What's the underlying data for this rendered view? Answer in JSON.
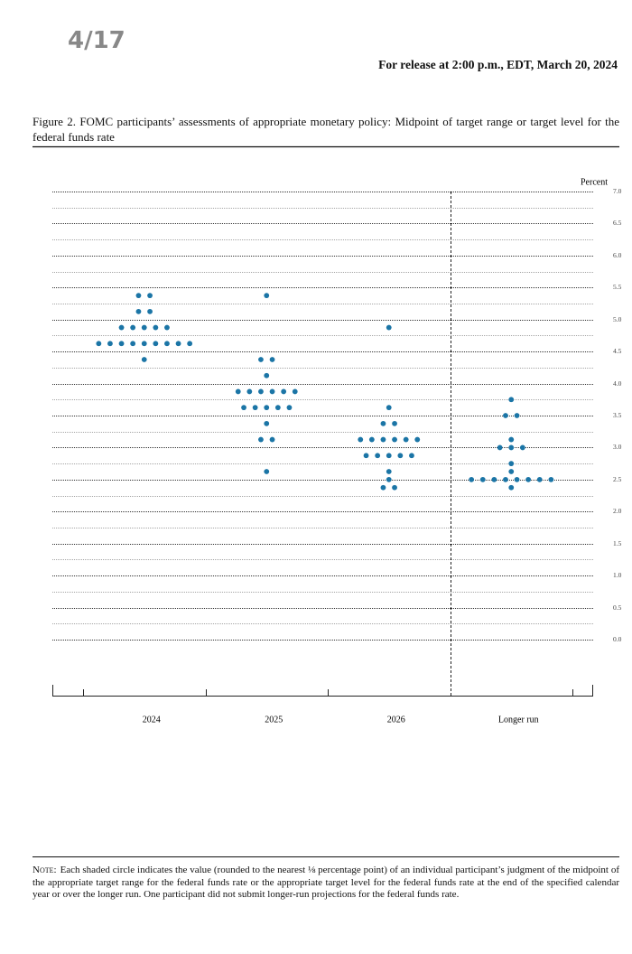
{
  "header": {
    "page": "4/17",
    "release": "For release at 2:00 p.m., EDT, March 20, 2024"
  },
  "caption": "Figure 2.  FOMC participants’ assessments of appropriate monetary policy:  Midpoint of target range or target level for the federal funds rate",
  "chart_data": {
    "type": "dot",
    "y_label": "Percent",
    "categories": [
      "2024",
      "2025",
      "2026",
      "Longer run"
    ],
    "values": [
      [
        5.375,
        5.375,
        5.125,
        5.125,
        4.875,
        4.875,
        4.875,
        4.875,
        4.875,
        4.625,
        4.625,
        4.625,
        4.625,
        4.625,
        4.625,
        4.625,
        4.625,
        4.625,
        4.375
      ],
      [
        5.375,
        4.375,
        4.375,
        4.125,
        3.875,
        3.875,
        3.875,
        3.875,
        3.875,
        3.875,
        3.625,
        3.625,
        3.625,
        3.625,
        3.625,
        3.375,
        3.125,
        3.125,
        2.625
      ],
      [
        4.875,
        3.625,
        3.375,
        3.375,
        3.125,
        3.125,
        3.125,
        3.125,
        3.125,
        3.125,
        2.875,
        2.875,
        2.875,
        2.875,
        2.875,
        2.625,
        2.5,
        2.375,
        2.375
      ],
      [
        3.75,
        3.5,
        3.5,
        3.125,
        3,
        3,
        3,
        2.75,
        2.625,
        2.5,
        2.5,
        2.5,
        2.5,
        2.5,
        2.5,
        2.5,
        2.5,
        2.375
      ]
    ],
    "color": "#1b75a6",
    "ylim": [
      0,
      7
    ],
    "yticks": [
      {
        "value": 0,
        "label": "0.0"
      },
      0.5,
      {
        "value": 1,
        "label": "1.0"
      },
      1.5,
      {
        "value": 2,
        "label": "2.0"
      },
      2.5,
      {
        "value": 3,
        "label": "3.0"
      },
      3.5,
      {
        "value": 4,
        "label": "4.0"
      },
      4.5,
      {
        "value": 5,
        "label": "5.0"
      },
      5.5,
      {
        "value": 6,
        "label": "6.0"
      },
      6.5,
      {
        "value": 7,
        "label": "7.0"
      }
    ],
    "minor_yticks": [
      0.25,
      0.75,
      1.25,
      1.75,
      2.25,
      2.75,
      3.25,
      3.75,
      4.25,
      4.75,
      5.25,
      5.75,
      6.25,
      6.75
    ],
    "grid": true
  },
  "note": {
    "label": "Note:",
    "text": "Each shaded circle indicates the value (rounded to the nearest ⅛ percentage point) of an individual participant’s judgment of the midpoint of the appropriate target range for the federal funds rate or the appropriate target level for the federal funds rate at the end of the specified calendar year or over the longer run. One participant did not submit longer-run projections for the federal funds rate."
  }
}
